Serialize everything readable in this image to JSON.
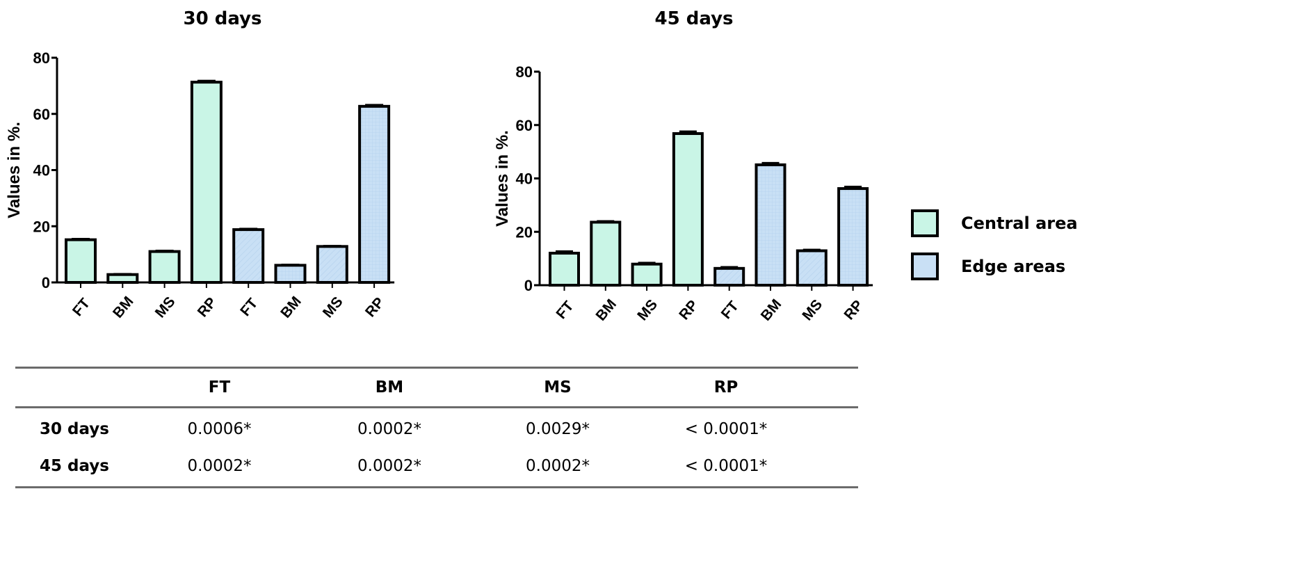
{
  "chart_data": [
    {
      "type": "bar",
      "title": "30 days",
      "ylabel": "Values in %.",
      "xlabel": "",
      "ylim": [
        0,
        80
      ],
      "yticks": [
        0,
        20,
        40,
        60,
        80
      ],
      "categories": [
        "FT",
        "BM",
        "MS",
        "RP",
        "FT",
        "BM",
        "MS",
        "RP"
      ],
      "groups": [
        "Central area",
        "Central area",
        "Central area",
        "Central area",
        "Edge areas",
        "Edge areas",
        "Edge areas",
        "Edge areas"
      ],
      "values": [
        15.2,
        2.8,
        11.0,
        71.3,
        18.8,
        6.1,
        12.8,
        62.7
      ],
      "errors": [
        0.4,
        0.3,
        0.4,
        0.6,
        0.4,
        0.3,
        0.3,
        0.6
      ],
      "grid": false
    },
    {
      "type": "bar",
      "title": "45 days",
      "ylabel": "Values in %.",
      "xlabel": "",
      "ylim": [
        0,
        80
      ],
      "yticks": [
        0,
        20,
        40,
        60,
        80
      ],
      "categories": [
        "FT",
        "BM",
        "MS",
        "RP",
        "FT",
        "BM",
        "MS",
        "RP"
      ],
      "groups": [
        "Central area",
        "Central area",
        "Central area",
        "Central area",
        "Edge areas",
        "Edge areas",
        "Edge areas",
        "Edge areas"
      ],
      "values": [
        12.0,
        23.6,
        7.9,
        56.8,
        6.3,
        45.1,
        12.9,
        36.2
      ],
      "errors": [
        0.8,
        0.5,
        0.6,
        0.9,
        0.6,
        0.8,
        0.5,
        0.8
      ],
      "grid": false
    }
  ],
  "legend": {
    "position": "right",
    "items": [
      {
        "label": "Central area",
        "color": "#c9f5e6"
      },
      {
        "label": "Edge areas",
        "color": "#c9e0f5"
      }
    ]
  },
  "table": {
    "headers": [
      "",
      "FT",
      "BM",
      "MS",
      "RP"
    ],
    "rows": [
      {
        "label": "30 days",
        "cells": [
          "0.0006*",
          "0.0002*",
          "0.0029*",
          "< 0.0001*"
        ]
      },
      {
        "label": "45 days",
        "cells": [
          "0.0002*",
          "0.0002*",
          "0.0002*",
          "< 0.0001*"
        ]
      }
    ]
  }
}
